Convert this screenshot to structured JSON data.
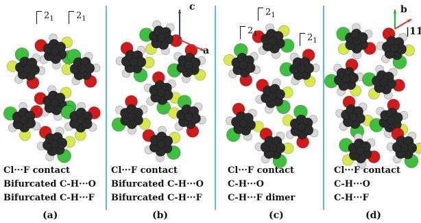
{
  "panels": [
    {
      "id": "a",
      "symmetry_labels": [
        "2",
        "2"
      ],
      "symmetry_sub": "1",
      "captions": [
        "Cl···F contact",
        "Bifurcated C-H···O",
        "Bifurcated C-H···F"
      ],
      "label": "(a)"
    },
    {
      "id": "b",
      "axes": [
        "c",
        "a"
      ],
      "captions": [
        "Cl···F contact",
        "Bifurcated C-H···O",
        "Bifurcated C-H···F"
      ],
      "label": "(b)"
    },
    {
      "id": "c",
      "symmetry_labels": [
        "2",
        "2",
        "2"
      ],
      "symmetry_sub": "1",
      "captions": [
        "Cl···F contact",
        "C-H···O",
        "C-H···F dimer"
      ],
      "label": "(c)"
    },
    {
      "id": "d",
      "axes": [
        "b",
        "|11"
      ],
      "captions": [
        "Cl···F contact",
        "C-H···O",
        "C-H···F"
      ],
      "label": "(d)"
    }
  ],
  "colors": {
    "carbon": "#2a2a2a",
    "hydrogen": "#d8d8d8",
    "chlorine": "#3fbf3f",
    "fluorine": "#d8e84a",
    "oxygen": "#d21a1a",
    "divider": "#5fb9d9",
    "axis_c": "#2b3fa8",
    "axis_a": "#e03030",
    "axis_b": "#20b030",
    "axis_d2": "#e03030"
  }
}
